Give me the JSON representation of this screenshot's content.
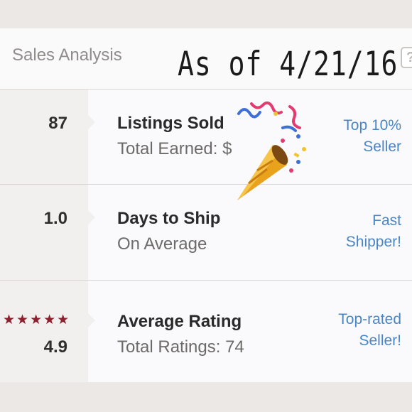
{
  "header": {
    "title": "Sales Analysis",
    "handwritten_note": "As of 4/21/16",
    "help_label": "?"
  },
  "rows": [
    {
      "value": "87",
      "label": "Listings Sold",
      "sub": "Total Earned: $",
      "badge_line1": "Top 10%",
      "badge_line2": "Seller"
    },
    {
      "value": "1.0",
      "label": "Days to Ship",
      "sub": "On Average",
      "badge_line1": "Fast",
      "badge_line2": "Shipper!"
    },
    {
      "value": "4.9",
      "stars": "★★★★★",
      "label": "Average Rating",
      "sub": "Total Ratings: 74",
      "badge_line1": "Top-rated",
      "badge_line2": "Seller!"
    }
  ],
  "colors": {
    "accent": "#4a86c6",
    "star": "#8e1f2c"
  },
  "icons": {
    "celebration": "party-popper-icon"
  }
}
